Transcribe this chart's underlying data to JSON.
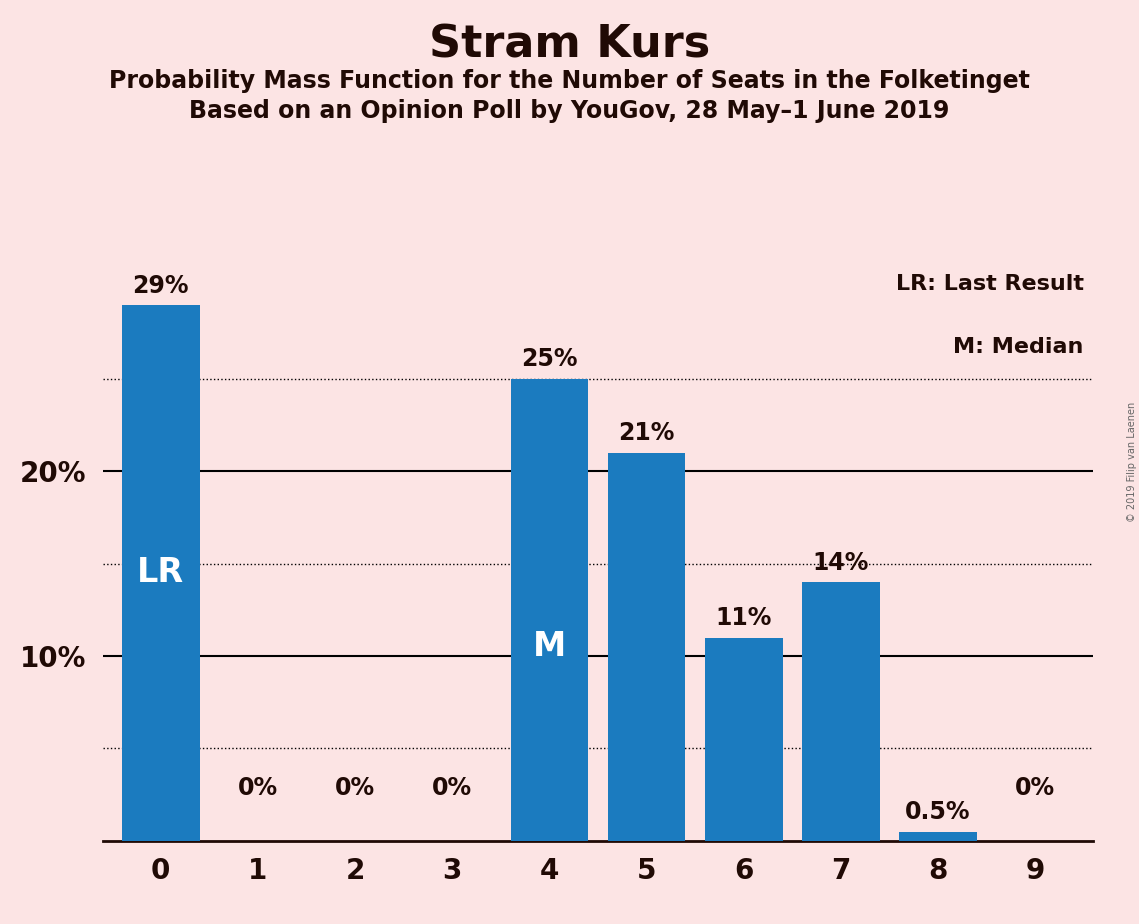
{
  "title": "Stram Kurs",
  "subtitle1": "Probability Mass Function for the Number of Seats in the Folketinget",
  "subtitle2": "Based on an Opinion Poll by YouGov, 28 May–1 June 2019",
  "watermark": "© 2019 Filip van Laenen",
  "legend_line1": "LR: Last Result",
  "legend_line2": "M: Median",
  "categories": [
    0,
    1,
    2,
    3,
    4,
    5,
    6,
    7,
    8,
    9
  ],
  "values": [
    29,
    0,
    0,
    0,
    25,
    21,
    11,
    14,
    0.5,
    0
  ],
  "labels": [
    "29%",
    "0%",
    "0%",
    "0%",
    "25%",
    "21%",
    "11%",
    "14%",
    "0.5%",
    "0%"
  ],
  "bar_color": "#1b7bbf",
  "background_color": "#fce4e4",
  "text_color": "#200a05",
  "title_fontsize": 32,
  "subtitle_fontsize": 17,
  "label_fontsize": 17,
  "axis_tick_fontsize": 20,
  "lr_bar": 0,
  "median_bar": 4,
  "dotted_lines": [
    5,
    15,
    25
  ],
  "solid_lines": [
    10,
    20
  ],
  "ylim": [
    0,
    31
  ],
  "yticks": [
    10,
    20
  ],
  "ytick_labels": [
    "10%",
    "20%"
  ]
}
